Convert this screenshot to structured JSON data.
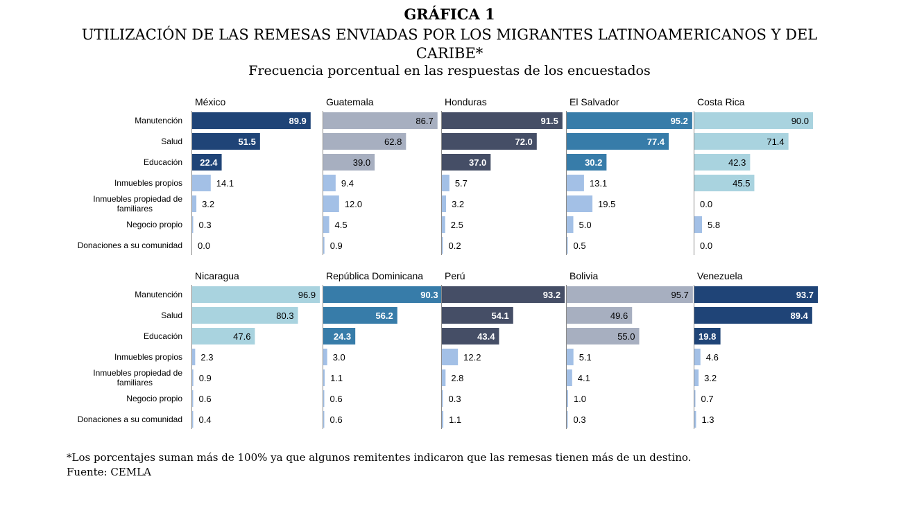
{
  "header": {
    "title": "GRÁFICA 1",
    "subtitle": "UTILIZACIÓN DE LAS REMESAS ENVIADAS POR LOS MIGRANTES LATINOAMERICANOS Y DEL CARIBE*",
    "caption": "Frecuencia porcentual en las respuestas de los encuestados"
  },
  "chart_data": {
    "type": "bar",
    "orientation": "horizontal",
    "categories": [
      "Manutención",
      "Salud",
      "Educación",
      "Inmuebles propios",
      "Inmuebles propiedad de familiares",
      "Negocio propio",
      "Donaciones a su comunidad"
    ],
    "xlim": [
      0,
      100
    ],
    "grid": false,
    "legend": "none",
    "panels": [
      {
        "name": "México",
        "values": [
          89.9,
          51.5,
          22.4,
          14.1,
          3.2,
          0.3,
          0.0
        ],
        "colors": [
          "#1f4477",
          "#1f4477",
          "#1f4477",
          "#a3c0e6",
          "#a3c0e6",
          "#a3c0e6",
          "#a3c0e6"
        ]
      },
      {
        "name": "Guatemala",
        "values": [
          86.7,
          62.8,
          39.0,
          9.4,
          12.0,
          4.5,
          0.9
        ],
        "colors": [
          "#a7afc0",
          "#a7afc0",
          "#a7afc0",
          "#a3c0e6",
          "#a3c0e6",
          "#a3c0e6",
          "#a3c0e6"
        ]
      },
      {
        "name": "Honduras",
        "values": [
          91.5,
          72.0,
          37.0,
          5.7,
          3.2,
          2.5,
          0.2
        ],
        "colors": [
          "#454e66",
          "#454e66",
          "#454e66",
          "#a3c0e6",
          "#a3c0e6",
          "#a3c0e6",
          "#a3c0e6"
        ]
      },
      {
        "name": "El Salvador",
        "values": [
          95.2,
          77.4,
          30.2,
          13.1,
          19.5,
          5.0,
          0.5
        ],
        "colors": [
          "#377ca9",
          "#377ca9",
          "#377ca9",
          "#a3c0e6",
          "#a3c0e6",
          "#a3c0e6",
          "#a3c0e6"
        ]
      },
      {
        "name": "Costa Rica",
        "values": [
          90.0,
          71.4,
          42.3,
          45.5,
          0.0,
          5.8,
          0.0
        ],
        "colors": [
          "#a9d3df",
          "#a9d3df",
          "#a9d3df",
          "#a9d3df",
          "#a3c0e6",
          "#a3c0e6",
          "#a3c0e6"
        ]
      },
      {
        "name": "Nicaragua",
        "values": [
          96.9,
          80.3,
          47.6,
          2.3,
          0.9,
          0.6,
          0.4
        ],
        "colors": [
          "#a9d3df",
          "#a9d3df",
          "#a9d3df",
          "#a3c0e6",
          "#a3c0e6",
          "#a3c0e6",
          "#a3c0e6"
        ]
      },
      {
        "name": "República Dominicana",
        "values": [
          90.3,
          56.2,
          24.3,
          3.0,
          1.1,
          0.6,
          0.6
        ],
        "colors": [
          "#377ca9",
          "#377ca9",
          "#377ca9",
          "#a3c0e6",
          "#a3c0e6",
          "#a3c0e6",
          "#a3c0e6"
        ]
      },
      {
        "name": "Perú",
        "values": [
          93.2,
          54.1,
          43.4,
          12.2,
          2.8,
          0.3,
          1.1
        ],
        "colors": [
          "#454e66",
          "#454e66",
          "#454e66",
          "#a3c0e6",
          "#a3c0e6",
          "#a3c0e6",
          "#a3c0e6"
        ]
      },
      {
        "name": "Bolivia",
        "values": [
          95.7,
          49.6,
          55.0,
          5.1,
          4.1,
          1.0,
          0.3
        ],
        "colors": [
          "#a7afc0",
          "#a7afc0",
          "#a7afc0",
          "#a3c0e6",
          "#a3c0e6",
          "#a3c0e6",
          "#a3c0e6"
        ]
      },
      {
        "name": "Venezuela",
        "values": [
          93.7,
          89.4,
          19.8,
          4.6,
          3.2,
          0.7,
          1.3
        ],
        "colors": [
          "#1f4477",
          "#1f4477",
          "#1f4477",
          "#a3c0e6",
          "#a3c0e6",
          "#a3c0e6",
          "#a3c0e6"
        ]
      }
    ]
  },
  "footer": {
    "note": "*Los porcentajes suman más de 100% ya que algunos remitentes indicaron que las remesas tienen más de un destino.",
    "source": "Fuente: CEMLA"
  }
}
